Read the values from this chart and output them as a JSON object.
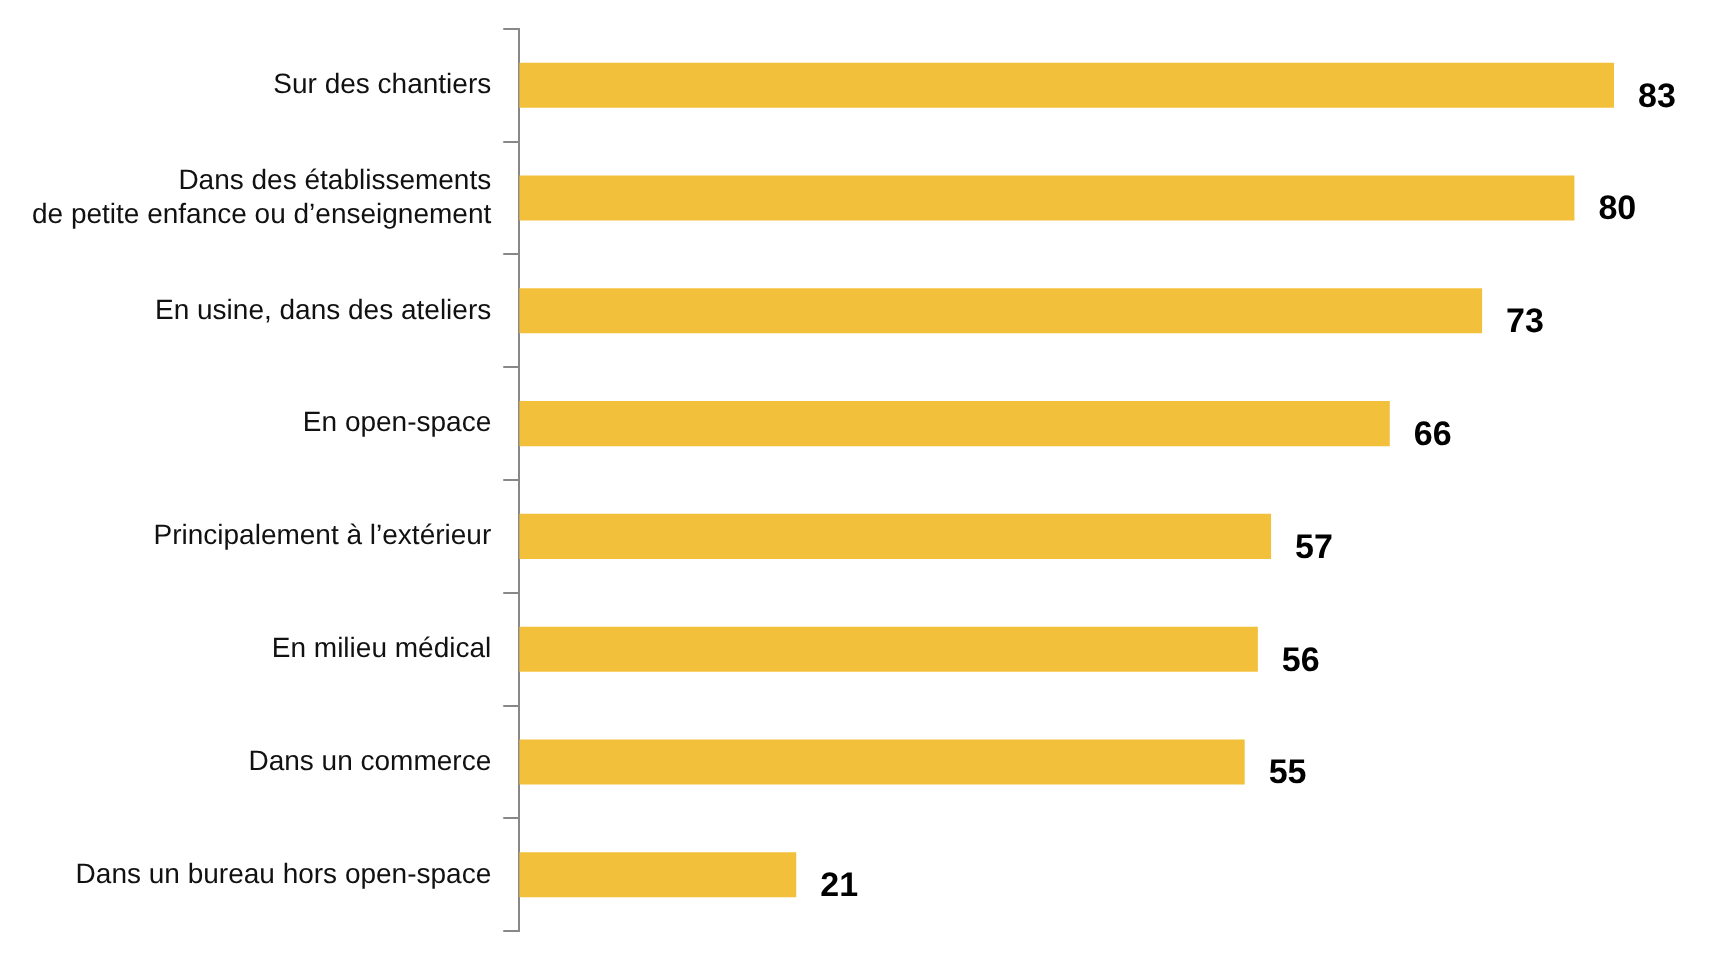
{
  "chart_data": {
    "type": "bar",
    "orientation": "horizontal",
    "categories": [
      "Sur des chantiers",
      "Dans des établissements\nde petite enfance ou d’enseignement",
      "En usine, dans des ateliers",
      "En open-space",
      "Principalement à l’extérieur",
      "En milieu médical",
      "Dans un commerce",
      "Dans un bureau hors open-space"
    ],
    "values": [
      83,
      80,
      73,
      66,
      57,
      56,
      55,
      21
    ],
    "color": "#f2c03a",
    "data_labels": true,
    "grid": false,
    "legend": false,
    "tick_labels": "y"
  }
}
